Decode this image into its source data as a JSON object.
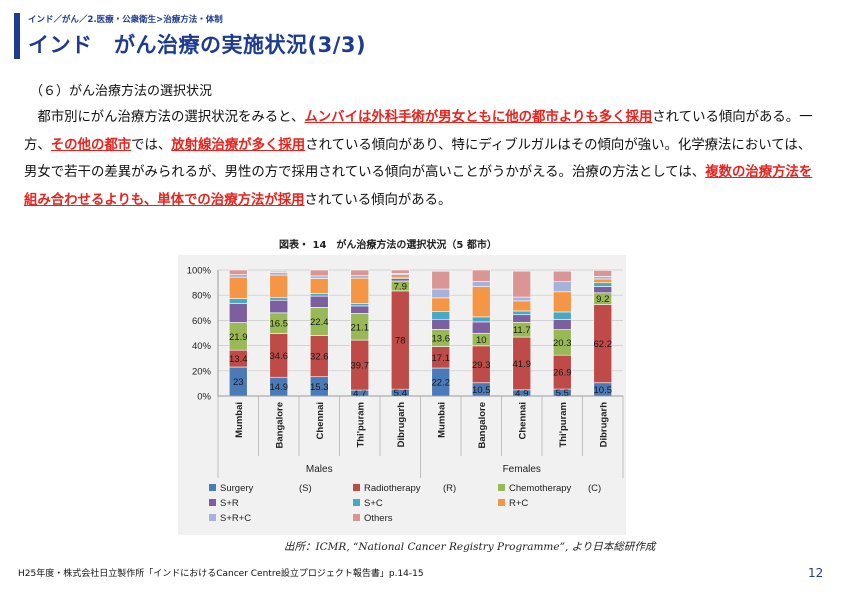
{
  "header": {
    "breadcrumb": "インド／がん／2.医療・公衆衛生>治療方法・体制",
    "title": "インド　がん治療の実施状況(3/3)"
  },
  "section": {
    "subheading": "（６）がん治療方法の選択状況",
    "paragraph": [
      {
        "t": "　都市別にがん治療方法の選択状況をみると、",
        "hl": false
      },
      {
        "t": "ムンバイは外科手術が男女ともに他の都市よりも多く採用",
        "hl": true
      },
      {
        "t": "されている傾向がある。一方、",
        "hl": false
      },
      {
        "t": "その他の都市",
        "hl": true
      },
      {
        "t": "では、",
        "hl": false
      },
      {
        "t": "放射線治療が多く採用",
        "hl": true
      },
      {
        "t": "されている傾向があり、特にディブルガルはその傾向が強い。化学療法においては、男女で若干の差異がみられるが、男性の方で採用されている傾向が高いことがうかがえる。治療の方法としては、",
        "hl": false
      },
      {
        "t": "複数の治療方法を組み合わせるよりも、単体での治療方法が採用",
        "hl": true
      },
      {
        "t": "されている傾向がある。",
        "hl": false
      }
    ]
  },
  "chart_data": {
    "type": "bar",
    "stacked": true,
    "title": "図表・ 14　がん治療方法の選択状況（5 都市）",
    "categories": [
      "Mumbai",
      "Bangalore",
      "Chennai",
      "Thi'puram",
      "Dibrugarh",
      "Mumbai",
      "Bangalore",
      "Chennai",
      "Thi'puram",
      "Dibrugarh"
    ],
    "groups": [
      {
        "label": "Males",
        "start": 0,
        "count": 5
      },
      {
        "label": "Females",
        "start": 5,
        "count": 5
      }
    ],
    "y_ticks": [
      "0%",
      "20%",
      "40%",
      "60%",
      "80%",
      "100%"
    ],
    "ylim": [
      0,
      100
    ],
    "series": [
      {
        "name": "Surgery",
        "code": "(S)",
        "color": "#4a7ab8",
        "values": [
          23,
          14.9,
          15.3,
          4.7,
          5.4,
          22.2,
          10.5,
          4.9,
          5.5,
          10.5
        ]
      },
      {
        "name": "Radiotherapy",
        "code": "(R)",
        "color": "#be4b48",
        "values": [
          13.4,
          34.6,
          32.6,
          39.7,
          78,
          17.1,
          29.3,
          41.9,
          26.9,
          62.2
        ]
      },
      {
        "name": "Chemotherapy",
        "code": "(C)",
        "color": "#98b955",
        "values": [
          21.9,
          16.5,
          22.4,
          21.1,
          7.9,
          13.6,
          10,
          11.7,
          20.3,
          9.2
        ]
      },
      {
        "name": "S+R",
        "code": "",
        "color": "#7d5f9f",
        "values": [
          15,
          10,
          9,
          6,
          2,
          8,
          9,
          6,
          8,
          5
        ]
      },
      {
        "name": "S+C",
        "code": "",
        "color": "#46aac4",
        "values": [
          4,
          2,
          2,
          2,
          1,
          6,
          4,
          3,
          6,
          3
        ]
      },
      {
        "name": "R+C",
        "code": "",
        "color": "#f59646",
        "values": [
          17,
          18,
          12,
          20,
          2,
          11,
          24,
          8,
          16,
          3
        ]
      },
      {
        "name": "S+R+C",
        "code": "",
        "color": "#a5b3dc",
        "values": [
          2,
          2,
          2,
          2,
          1,
          7,
          4,
          3,
          8,
          2
        ]
      },
      {
        "name": "Others",
        "code": "",
        "color": "#d99694",
        "values": [
          3.7,
          1.0,
          4.7,
          4.5,
          2.7,
          14.1,
          9.2,
          20.6,
          8.4,
          4.9
        ]
      }
    ],
    "labeled_series": [
      "Surgery",
      "Radiotherapy",
      "Chemotherapy"
    ],
    "legend_position": "bottom",
    "grid": true
  },
  "source": "出所：ICMR, “National Cancer Registry Programme”, より日本総研作成",
  "footer": {
    "citation": "H25年度・株式会社日立製作所「インドにおけるCancer Centre設立プロジェクト報告書」p.14-15",
    "page": "12"
  }
}
